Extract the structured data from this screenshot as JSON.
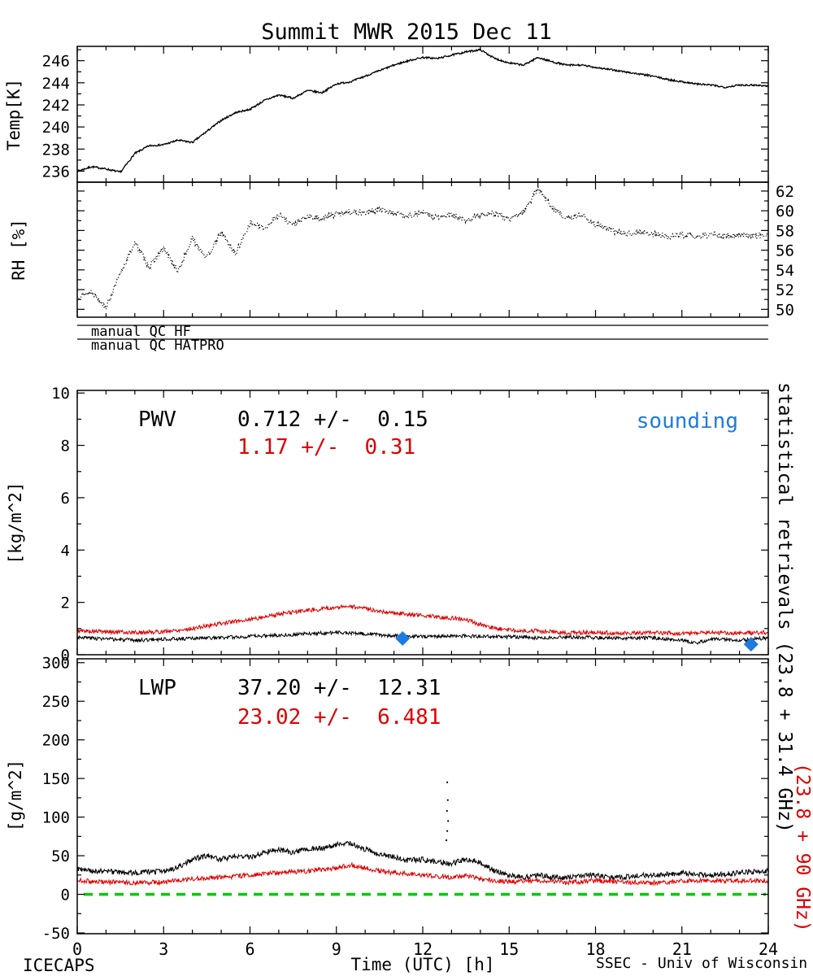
{
  "title": "Summit MWR 2015 Dec 11",
  "xlabel": "Time (UTC) [h]",
  "footer": {
    "left": "ICECAPS",
    "right": "SSEC - Univ of Wisconsin"
  },
  "qc": {
    "hf": "manual QC HF",
    "hatpro": "manual QC HATPRO"
  },
  "right_labels": {
    "black": "statistical retrievals (23.8 + 31.4 GHz)",
    "red": "(23.8 + 90 GHz)"
  },
  "colors": {
    "black": "#000000",
    "red": "#dd0000",
    "blue": "#1e7be0",
    "green": "#00cc00"
  },
  "chart_data": [
    {
      "type": "line",
      "id": "temp",
      "ylabel": "Temp[K]",
      "xlim": [
        0,
        24
      ],
      "xticks": [
        0,
        3,
        6,
        9,
        12,
        15,
        18,
        21,
        24
      ],
      "xminor": 1,
      "ylim": [
        235.0,
        247.3
      ],
      "yticks": [
        236,
        238,
        240,
        242,
        244,
        246
      ],
      "yminor": 1,
      "ytick_side": "left",
      "series": [
        {
          "name": "temperature",
          "color": "#000000",
          "style": "solid",
          "width": 1.3,
          "noise": 0.08,
          "seed": 7,
          "x": [
            0,
            0.5,
            1,
            1.5,
            2,
            2.5,
            3,
            3.5,
            4,
            4.5,
            5,
            5.5,
            6,
            6.5,
            7,
            7.5,
            8,
            8.5,
            9,
            9.5,
            10,
            10.5,
            11,
            11.5,
            12,
            12.5,
            13,
            13.5,
            14,
            14.5,
            15,
            15.5,
            16,
            16.5,
            17,
            17.5,
            18,
            18.5,
            19,
            19.5,
            20,
            20.5,
            21,
            21.5,
            22,
            22.5,
            23,
            23.5,
            24
          ],
          "y": [
            236.0,
            236.4,
            236.2,
            235.9,
            237.6,
            238.3,
            238.4,
            238.8,
            238.6,
            239.6,
            240.6,
            241.3,
            241.6,
            242.4,
            242.9,
            242.6,
            243.3,
            243.1,
            243.9,
            244.1,
            244.6,
            245.1,
            245.6,
            246.0,
            246.3,
            246.2,
            246.5,
            246.8,
            247.0,
            246.2,
            245.8,
            245.6,
            246.3,
            245.9,
            245.6,
            245.6,
            245.4,
            245.2,
            245.0,
            244.8,
            244.6,
            244.3,
            244.1,
            243.9,
            243.8,
            243.6,
            243.8,
            243.8,
            243.7
          ]
        }
      ]
    },
    {
      "type": "line",
      "id": "rh",
      "ylabel": "RH [%]",
      "xlim": [
        0,
        24
      ],
      "xticks": [
        0,
        3,
        6,
        9,
        12,
        15,
        18,
        21,
        24
      ],
      "xminor": 1,
      "ylim": [
        49.2,
        62.9
      ],
      "yticks": [
        50,
        52,
        54,
        56,
        58,
        60,
        62
      ],
      "yminor": 1,
      "ytick_side": "right",
      "series": [
        {
          "name": "relative-humidity",
          "color": "#000000",
          "style": "dotted",
          "width": 1.4,
          "noise": 0.3,
          "seed": 13,
          "x": [
            0,
            0.5,
            1,
            1.5,
            2,
            2.5,
            3,
            3.5,
            4,
            4.5,
            5,
            5.5,
            6,
            6.5,
            7,
            7.5,
            8,
            8.5,
            9,
            9.5,
            10,
            10.5,
            11,
            11.5,
            12,
            12.5,
            13,
            13.5,
            14,
            14.5,
            15,
            15.5,
            16,
            16.5,
            17,
            17.5,
            18,
            18.5,
            19,
            19.5,
            20,
            20.5,
            21,
            21.5,
            22,
            22.5,
            23,
            23.5,
            24
          ],
          "y": [
            51.3,
            51.8,
            50.2,
            53.6,
            56.8,
            54.3,
            56.2,
            53.8,
            57.2,
            55.2,
            57.8,
            55.6,
            58.8,
            58.2,
            59.6,
            58.6,
            59.4,
            59.2,
            59.7,
            59.9,
            59.8,
            60.1,
            59.8,
            59.5,
            59.8,
            59.3,
            59.6,
            58.9,
            59.6,
            59.8,
            59.1,
            59.9,
            62.3,
            60.3,
            59.2,
            59.6,
            58.6,
            58.1,
            57.6,
            57.9,
            57.6,
            57.4,
            57.6,
            57.3,
            57.6,
            57.4,
            57.6,
            57.5,
            57.6
          ]
        }
      ]
    },
    {
      "type": "line",
      "id": "pwv",
      "ylabel": "[kg/m^2]",
      "xlim": [
        0,
        24
      ],
      "xticks": [
        0,
        3,
        6,
        9,
        12,
        15,
        18,
        21,
        24
      ],
      "xminor": 1,
      "ylim": [
        0,
        10.1
      ],
      "yticks": [
        0,
        2,
        4,
        6,
        8,
        10
      ],
      "yminor": 1,
      "ytick_side": "left",
      "annotations": {
        "label": "PWV",
        "stat_black": "0.712 +/-  0.15",
        "stat_red": "1.17 +/-  0.31",
        "legend": "sounding"
      },
      "series": [
        {
          "name": "pwv-hatpro",
          "color": "#000000",
          "style": "solid",
          "width": 1,
          "noise": 0.07,
          "seed": 3,
          "x": [
            0,
            1,
            2,
            3,
            4,
            5,
            6,
            7,
            8,
            9,
            10,
            11,
            12,
            13,
            14,
            15,
            16,
            17,
            18,
            19,
            20,
            21,
            21.5,
            22,
            23,
            24
          ],
          "y": [
            0.68,
            0.6,
            0.55,
            0.6,
            0.62,
            0.65,
            0.7,
            0.75,
            0.8,
            0.85,
            0.8,
            0.72,
            0.7,
            0.72,
            0.7,
            0.68,
            0.65,
            0.68,
            0.65,
            0.62,
            0.65,
            0.55,
            0.45,
            0.6,
            0.55,
            0.65
          ]
        },
        {
          "name": "pwv-90ghz",
          "color": "#dd0000",
          "style": "solid",
          "width": 1,
          "noise": 0.08,
          "seed": 5,
          "x": [
            0,
            1,
            2,
            3,
            4,
            5,
            6,
            7,
            8,
            9,
            9.5,
            10,
            11,
            12,
            13,
            13.5,
            14,
            14.5,
            15,
            16,
            17,
            18,
            19,
            20,
            21,
            22,
            23,
            24
          ],
          "y": [
            0.92,
            0.88,
            0.85,
            0.88,
            1.0,
            1.2,
            1.35,
            1.55,
            1.7,
            1.8,
            1.85,
            1.75,
            1.6,
            1.5,
            1.4,
            1.35,
            1.15,
            1.0,
            0.95,
            0.9,
            0.85,
            0.85,
            0.82,
            0.85,
            0.8,
            0.85,
            0.82,
            0.85
          ]
        }
      ],
      "scatter": [
        {
          "name": "sounding",
          "marker": "diamond",
          "color": "#1e7be0",
          "points": [
            [
              11.3,
              0.62
            ],
            [
              23.4,
              0.4
            ]
          ]
        }
      ]
    },
    {
      "type": "line",
      "id": "lwp",
      "ylabel": "[g/m^2]",
      "xlim": [
        0,
        24
      ],
      "xticks": [
        0,
        3,
        6,
        9,
        12,
        15,
        18,
        21,
        24
      ],
      "xminor": 1,
      "xtick_labels": true,
      "ylim": [
        -51,
        305
      ],
      "yticks": [
        -50,
        0,
        50,
        100,
        150,
        200,
        250,
        300
      ],
      "yminor": 25,
      "ytick_side": "left",
      "hline": {
        "y": 0,
        "color": "#00cc00",
        "style": "dashed"
      },
      "annotations": {
        "label": "LWP",
        "stat_black": "37.20 +/-  12.31",
        "stat_red": "23.02 +/-  6.481"
      },
      "series": [
        {
          "name": "lwp-hatpro",
          "color": "#000000",
          "style": "solid",
          "width": 1,
          "noise": 3.5,
          "seed": 9,
          "x": [
            0,
            0.5,
            1,
            1.5,
            2,
            2.5,
            3,
            3.5,
            4,
            4.5,
            5,
            5.5,
            6,
            6.5,
            7,
            7.5,
            8,
            8.5,
            9,
            9.5,
            10,
            10.5,
            11,
            11.5,
            12,
            12.5,
            13,
            13.5,
            14,
            14.5,
            15,
            15.5,
            16,
            16.5,
            17,
            17.5,
            18,
            18.5,
            19,
            19.5,
            20,
            20.5,
            21,
            21.5,
            22,
            22.5,
            23,
            23.5,
            24
          ],
          "y": [
            33,
            30,
            30,
            28,
            28,
            29,
            30,
            35,
            45,
            50,
            45,
            50,
            48,
            54,
            58,
            54,
            58,
            60,
            64,
            66,
            58,
            52,
            48,
            44,
            45,
            42,
            40,
            45,
            42,
            30,
            25,
            22,
            25,
            22,
            22,
            24,
            25,
            22,
            22,
            24,
            25,
            26,
            28,
            25,
            25,
            26,
            28,
            29,
            30
          ]
        },
        {
          "name": "lwp-90ghz",
          "color": "#dd0000",
          "style": "solid",
          "width": 1,
          "noise": 3,
          "seed": 15,
          "x": [
            0,
            1,
            2,
            3,
            4,
            5,
            6,
            7,
            8,
            9,
            9.5,
            10,
            10.5,
            11,
            12,
            13,
            13.5,
            14,
            15,
            16,
            17,
            18,
            19,
            20,
            21,
            22,
            23,
            24
          ],
          "y": [
            18,
            16,
            15,
            16,
            20,
            22,
            25,
            28,
            30,
            34,
            38,
            34,
            30,
            28,
            25,
            22,
            24,
            20,
            16,
            18,
            15,
            18,
            16,
            15,
            17,
            18,
            17,
            18
          ]
        }
      ],
      "scatter": [
        {
          "name": "lwp-outliers",
          "marker": "dot",
          "color": "#000000",
          "points": [
            [
              12.82,
              70
            ],
            [
              12.85,
              82
            ],
            [
              12.88,
              95
            ],
            [
              12.84,
              108
            ],
            [
              12.87,
              122
            ],
            [
              12.85,
              145
            ]
          ]
        }
      ]
    }
  ]
}
